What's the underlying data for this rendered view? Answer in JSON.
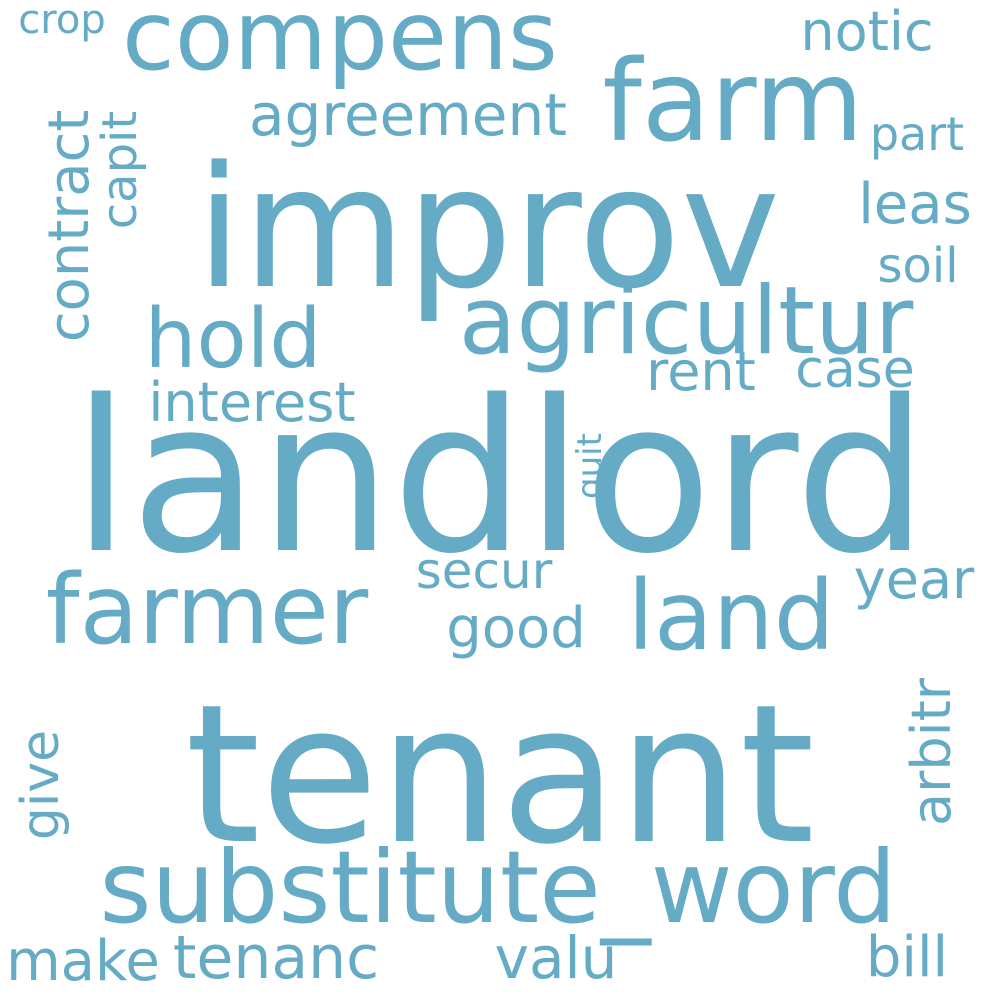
{
  "word_cloud": {
    "text_color": "#65abc6",
    "background_color": "#ffffff",
    "words": {
      "landlord": "landlord",
      "tenant": "tenant",
      "improv": "improv",
      "substitute_word": "substitute_word",
      "farm": "farm",
      "compens": "compens",
      "agricultur": "agricultur",
      "farmer": "farmer",
      "land": "land",
      "hold": "hold",
      "agreement": "agreement",
      "notic": "notic",
      "leas": "leas",
      "part": "part",
      "soil": "soil",
      "case": "case",
      "rent": "rent",
      "interest": "interest",
      "secur": "secur",
      "good": "good",
      "year": "year",
      "crop": "crop",
      "make": "make",
      "tenanc": "tenanc",
      "valu": "valu",
      "bill": "bill",
      "contract": "contract",
      "capit": "capit",
      "quit": "quit",
      "arbitr": "arbitr",
      "give": "give"
    }
  }
}
